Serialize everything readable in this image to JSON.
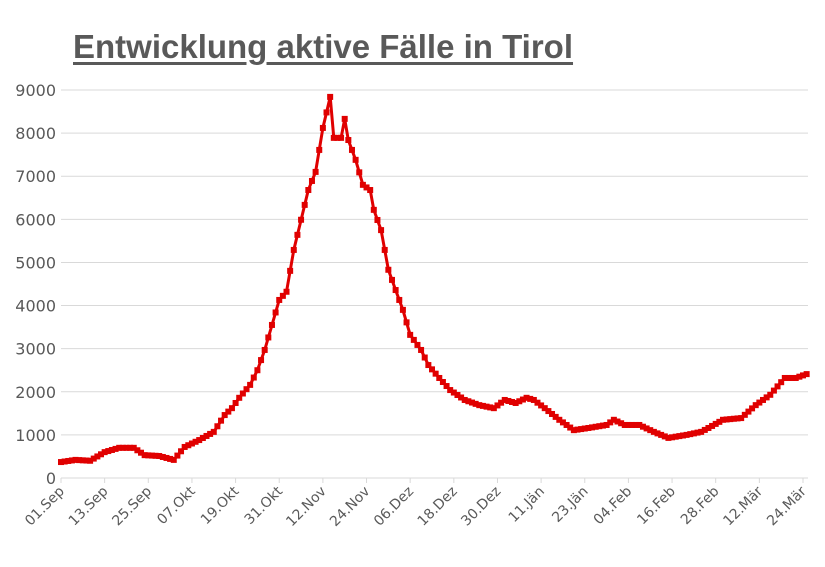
{
  "title": "Entwicklung aktive Fälle in Tirol",
  "colors": {
    "series": "#e00000",
    "grid": "#d9d9d9",
    "axis_text": "#595959",
    "title": "#595959"
  },
  "chart_data": {
    "type": "line",
    "title": "Entwicklung aktive Fälle in Tirol",
    "xlabel": "",
    "ylabel": "",
    "ylim": [
      0,
      9000
    ],
    "yticks": [
      0,
      1000,
      2000,
      3000,
      4000,
      5000,
      6000,
      7000,
      8000,
      9000
    ],
    "grid": true,
    "legend": null,
    "x_tick_labels": [
      "01.Sep",
      "13.Sep",
      "25.Sep",
      "07.Okt",
      "19.Okt",
      "31.Okt",
      "12.Nov",
      "24.Nov",
      "06.Dez",
      "18.Dez",
      "30.Dez",
      "11.Jän",
      "23.Jän",
      "04.Feb",
      "16.Feb",
      "28.Feb",
      "12.Mär",
      "24.Mär"
    ],
    "x_tick_interval_days": 12,
    "x_range_days": [
      0,
      205
    ],
    "series": [
      {
        "name": "Aktive Fälle",
        "marker": "square",
        "points_day_value": [
          [
            0,
            370
          ],
          [
            4,
            420
          ],
          [
            8,
            400
          ],
          [
            12,
            600
          ],
          [
            16,
            700
          ],
          [
            20,
            700
          ],
          [
            23,
            530
          ],
          [
            27,
            510
          ],
          [
            31,
            420
          ],
          [
            34,
            720
          ],
          [
            38,
            880
          ],
          [
            42,
            1070
          ],
          [
            45,
            1460
          ],
          [
            47,
            1620
          ],
          [
            49,
            1860
          ],
          [
            52,
            2160
          ],
          [
            54,
            2500
          ],
          [
            56,
            2970
          ],
          [
            58,
            3550
          ],
          [
            60,
            4130
          ],
          [
            62,
            4320
          ],
          [
            64,
            5290
          ],
          [
            66,
            5990
          ],
          [
            68,
            6680
          ],
          [
            70,
            7100
          ],
          [
            72,
            8120
          ],
          [
            74,
            8840
          ],
          [
            75,
            7890
          ],
          [
            77,
            7890
          ],
          [
            78,
            8330
          ],
          [
            79,
            7840
          ],
          [
            81,
            7380
          ],
          [
            83,
            6800
          ],
          [
            85,
            6680
          ],
          [
            86,
            6220
          ],
          [
            88,
            5750
          ],
          [
            90,
            4830
          ],
          [
            92,
            4360
          ],
          [
            94,
            3900
          ],
          [
            96,
            3320
          ],
          [
            99,
            2970
          ],
          [
            101,
            2620
          ],
          [
            104,
            2320
          ],
          [
            107,
            2040
          ],
          [
            111,
            1810
          ],
          [
            115,
            1690
          ],
          [
            119,
            1620
          ],
          [
            122,
            1810
          ],
          [
            125,
            1740
          ],
          [
            128,
            1860
          ],
          [
            130,
            1810
          ],
          [
            133,
            1620
          ],
          [
            137,
            1350
          ],
          [
            141,
            1110
          ],
          [
            145,
            1160
          ],
          [
            150,
            1230
          ],
          [
            152,
            1350
          ],
          [
            155,
            1230
          ],
          [
            159,
            1230
          ],
          [
            163,
            1070
          ],
          [
            167,
            930
          ],
          [
            172,
            1000
          ],
          [
            176,
            1070
          ],
          [
            178,
            1160
          ],
          [
            182,
            1350
          ],
          [
            187,
            1390
          ],
          [
            191,
            1690
          ],
          [
            195,
            1930
          ],
          [
            199,
            2320
          ],
          [
            202,
            2320
          ],
          [
            205,
            2410
          ]
        ]
      }
    ]
  }
}
